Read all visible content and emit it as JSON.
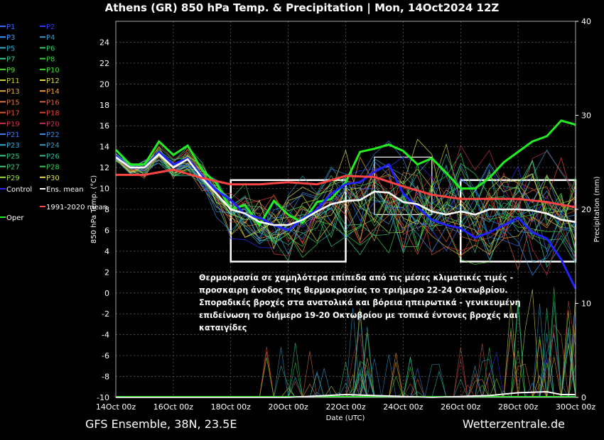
{
  "header": {
    "title": "Athens  (GR)  850 hPa Temp. & Precipitation | Mon, 14Oct2024 12Z"
  },
  "footer": {
    "model": "GFS Ensemble, 38N, 23.5E",
    "site": "Wetterzentrale.de"
  },
  "annotation": {
    "lines": [
      "Θερμοκρασία σε χαμηλότερα επίπεδα από τις μέσες κλιματικές τιμές -",
      "προσκαιρη άνοδος της θερμοκρασίας το τριήμερο 22-24 Οκτωβρίου.",
      "Σποραδικές βροχές στα ανατολικά και βόρεια ηπειρωτικά - γενικευμένη",
      "επιδείνωση το διήμερο 19-20 Οκτωβρίου με τοπικά έντονες βροχές και",
      "καταιγίδες"
    ]
  },
  "chart_data": {
    "type": "line",
    "title": "Athens  (GR)  850 hPa Temp. & Precipitation | Mon, 14Oct2024 12Z",
    "xlabel": "Date (UTC)",
    "ylabel": "850 hPa Temp. (°C)",
    "y2label": "Precipitation (mm)",
    "x_ticks": [
      "14Oct 00z",
      "16Oct 00z",
      "18Oct 00z",
      "20Oct 00z",
      "22Oct 00z",
      "24Oct 00z",
      "26Oct 00z",
      "28Oct 00z",
      "30Oct 00z"
    ],
    "x_tick_days": [
      0,
      2,
      4,
      6,
      8,
      10,
      12,
      14,
      16
    ],
    "xlim_days": [
      0,
      16
    ],
    "ylim": [
      -10,
      26
    ],
    "y_ticks": [
      -10,
      -8,
      -6,
      -4,
      -2,
      0,
      2,
      4,
      6,
      8,
      10,
      12,
      14,
      16,
      18,
      20,
      22,
      24
    ],
    "y2lim": [
      0,
      40
    ],
    "y2_ticks": [
      0,
      10,
      20,
      30,
      40
    ],
    "grid": true,
    "legend_placement": "left",
    "legend": [
      {
        "name": "P1",
        "color": "#3366ff"
      },
      {
        "name": "P2",
        "color": "#3333ff"
      },
      {
        "name": "P3",
        "color": "#3399ff"
      },
      {
        "name": "P4",
        "color": "#3399cc"
      },
      {
        "name": "P5",
        "color": "#33aacc"
      },
      {
        "name": "P6",
        "color": "#33cc66"
      },
      {
        "name": "P7",
        "color": "#33cc99"
      },
      {
        "name": "P8",
        "color": "#33cc44"
      },
      {
        "name": "P9",
        "color": "#55dd33"
      },
      {
        "name": "P10",
        "color": "#44dd33"
      },
      {
        "name": "P11",
        "color": "#cccc33"
      },
      {
        "name": "P12",
        "color": "#dddd44"
      },
      {
        "name": "P13",
        "color": "#ddaa33"
      },
      {
        "name": "P14",
        "color": "#ee9933"
      },
      {
        "name": "P15",
        "color": "#dd7744"
      },
      {
        "name": "P16",
        "color": "#cc6644"
      },
      {
        "name": "P17",
        "color": "#dd5533"
      },
      {
        "name": "P18",
        "color": "#dd4433"
      },
      {
        "name": "P19",
        "color": "#cc3344"
      },
      {
        "name": "P20",
        "color": "#bb3355"
      },
      {
        "name": "P21",
        "color": "#4477ee"
      },
      {
        "name": "P22",
        "color": "#3388dd"
      },
      {
        "name": "P23",
        "color": "#33aadd"
      },
      {
        "name": "P24",
        "color": "#3399bb"
      },
      {
        "name": "P25",
        "color": "#33cc88"
      },
      {
        "name": "P26",
        "color": "#33bb99"
      },
      {
        "name": "P27",
        "color": "#44cc77"
      },
      {
        "name": "P28",
        "color": "#33cc55"
      },
      {
        "name": "P29",
        "color": "#99dd33"
      },
      {
        "name": "P30",
        "color": "#dddd55"
      },
      {
        "name": "Control",
        "color": "#2222ff"
      },
      {
        "name": "Ens. mean",
        "color": "#ffffff"
      },
      {
        "name": "Oper",
        "color": "#22ee22"
      },
      {
        "name": "1991-2020 mean",
        "color": "#ff4444"
      }
    ],
    "series": [
      {
        "name": "Oper",
        "color": "#22ee22",
        "x": [
          0,
          0.5,
          1,
          1.5,
          2,
          2.5,
          3,
          3.5,
          4,
          4.5,
          5,
          5.5,
          6,
          6.5,
          7,
          7.5,
          8,
          8.5,
          9,
          9.5,
          10,
          10.5,
          11,
          11.5,
          12,
          12.5,
          13,
          13.5,
          14,
          14.5,
          15,
          15.5,
          16
        ],
        "values": [
          13.7,
          12.3,
          12.3,
          14.5,
          13.2,
          14.1,
          11.8,
          10.5,
          8.0,
          8.4,
          6.5,
          8.8,
          7.5,
          6.7,
          8.7,
          9.0,
          10.6,
          13.5,
          13.8,
          14.2,
          13.6,
          12.3,
          12.9,
          11.5,
          10.0,
          10.0,
          11.0,
          12.5,
          13.5,
          14.5,
          15.0,
          16.5,
          16.1
        ]
      },
      {
        "name": "Control",
        "color": "#2222ff",
        "x": [
          0,
          0.5,
          1,
          1.5,
          2,
          2.5,
          3,
          3.5,
          4,
          4.5,
          5,
          5.5,
          6,
          6.5,
          7,
          7.5,
          8,
          8.5,
          9,
          9.5,
          10,
          10.5,
          11,
          11.5,
          12,
          12.5,
          13,
          13.5,
          14,
          14.5,
          15,
          15.5,
          16
        ],
        "values": [
          13.1,
          12.0,
          12.0,
          13.5,
          12.3,
          12.9,
          11.2,
          9.8,
          8.9,
          7.5,
          7.2,
          6.5,
          6.0,
          7.1,
          8.0,
          9.5,
          10.4,
          10.6,
          11.6,
          12.3,
          9.5,
          8.2,
          7.0,
          6.5,
          6.2,
          5.3,
          5.8,
          6.5,
          7.2,
          5.8,
          5.2,
          3.2,
          0.4
        ]
      },
      {
        "name": "Ens. mean",
        "color": "#ffffff",
        "x": [
          0,
          0.5,
          1,
          1.5,
          2,
          2.5,
          3,
          3.5,
          4,
          4.5,
          5,
          5.5,
          6,
          6.5,
          7,
          7.5,
          8,
          8.5,
          9,
          9.5,
          10,
          10.5,
          11,
          11.5,
          12,
          12.5,
          13,
          13.5,
          14,
          14.5,
          15,
          15.5,
          16
        ],
        "values": [
          13.0,
          12.0,
          12.0,
          13.3,
          12.0,
          12.8,
          11.0,
          9.5,
          8.0,
          7.6,
          6.8,
          6.5,
          6.5,
          7.0,
          7.8,
          8.5,
          8.8,
          8.9,
          9.7,
          9.6,
          8.7,
          8.5,
          7.8,
          7.5,
          7.8,
          7.5,
          8.0,
          8.0,
          8.0,
          7.9,
          7.6,
          7.0,
          6.8
        ]
      },
      {
        "name": "1991-2020 mean",
        "color": "#ff4444",
        "x": [
          0,
          1,
          2,
          3,
          4,
          5,
          6,
          7,
          8,
          9,
          10,
          11,
          12,
          13,
          14,
          15,
          16
        ],
        "values": [
          11.3,
          11.3,
          11.8,
          11.0,
          10.4,
          10.4,
          10.6,
          10.4,
          11.2,
          11.1,
          10.2,
          9.4,
          9.0,
          9.0,
          9.0,
          8.7,
          8.2
        ]
      }
    ],
    "boxes": [
      {
        "x": [
          4,
          8
        ],
        "y": [
          3,
          10.8
        ]
      },
      {
        "x": [
          9,
          11
        ],
        "y": [
          7.5,
          13
        ]
      },
      {
        "x": [
          12,
          16
        ],
        "y": [
          3,
          10.8
        ]
      }
    ]
  }
}
